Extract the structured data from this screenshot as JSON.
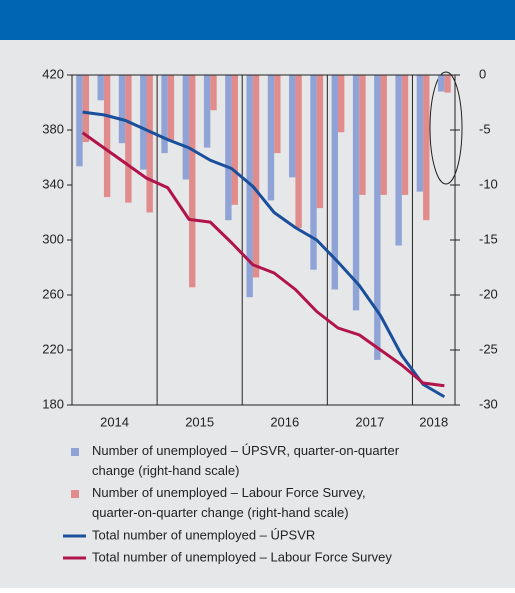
{
  "chart_data": {
    "type": "bar_line",
    "categories": [
      "2014",
      null,
      null,
      null,
      "2015",
      null,
      null,
      null,
      "2016",
      null,
      null,
      null,
      "2017",
      null,
      null,
      null,
      "2018",
      null
    ],
    "series": [
      {
        "name": "Number of unemployed – ÚPSVR, quarter-on-quarter change (right-hand scale)",
        "kind": "bar",
        "axis": "y2",
        "color": "#8fa3d6",
        "values": [
          -8.3,
          -2.3,
          -6.2,
          -8.6,
          -7.1,
          -9.5,
          -6.6,
          -13.2,
          -20.2,
          -11.4,
          -9.3,
          -17.7,
          -19.5,
          -21.4,
          -25.9,
          -15.5,
          -10.6,
          -1.5
        ]
      },
      {
        "name": "Number of unemployed – Labour Force Survey, quarter-on-quarter change (right-hand scale)",
        "kind": "bar",
        "axis": "y2",
        "color": "#e08c8c",
        "values": [
          -6.1,
          -11.1,
          -11.6,
          -12.5,
          -5.9,
          -19.3,
          -3.2,
          -11.8,
          -18.4,
          -7.1,
          -13.9,
          -12.1,
          -5.2,
          -10.9,
          -10.9,
          -10.9,
          -13.2,
          -1.6
        ]
      },
      {
        "name": "Total number of unemployed – ÚPSVR",
        "kind": "line",
        "color": "#1a4f9c",
        "values": [
          393,
          391,
          387,
          380,
          373,
          367,
          358,
          352,
          339,
          320,
          309,
          300,
          284,
          267,
          245,
          216,
          195,
          186
        ]
      },
      {
        "name": "Total number of unemployed – Labour Force Survey",
        "kind": "line",
        "color": "#b0144a",
        "values": [
          378,
          367,
          356,
          345,
          338,
          315,
          313,
          298,
          282,
          276,
          264,
          248,
          236,
          231,
          220,
          209,
          196,
          194
        ]
      }
    ],
    "ylim": [
      180,
      420
    ],
    "yticks": [
      180,
      220,
      260,
      300,
      340,
      380,
      420
    ],
    "y2lim": [
      -30,
      0
    ],
    "y2ticks": [
      -30,
      -25,
      -20,
      -15,
      -10,
      -5,
      0
    ]
  }
}
